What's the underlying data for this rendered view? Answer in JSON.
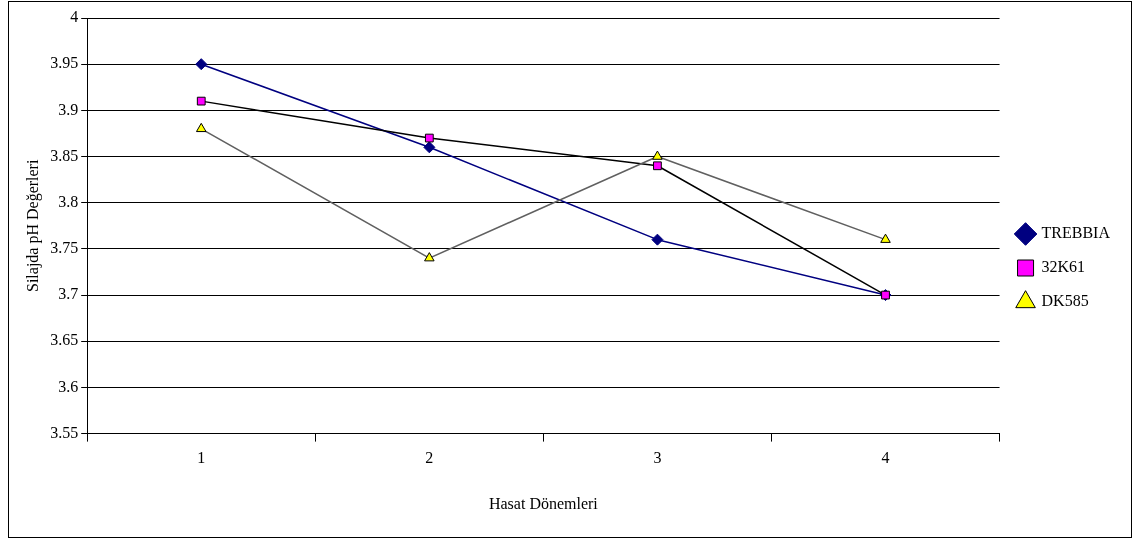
{
  "chart_data": {
    "type": "line",
    "xlabel": "Hasat Dönemleri",
    "ylabel": "Silajda pH Değerleri",
    "categories": [
      "1",
      "2",
      "3",
      "4"
    ],
    "ylim": [
      3.55,
      4
    ],
    "yticks": [
      3.55,
      3.6,
      3.65,
      3.7,
      3.75,
      3.8,
      3.85,
      3.9,
      3.95,
      4
    ],
    "grid": "y",
    "legend": "right",
    "series": [
      {
        "name": "TREBBIA",
        "color": "#000080",
        "marker": "diamond",
        "colors": [
          "#000080",
          "#000080",
          "#000080",
          "#000080"
        ],
        "values": [
          3.95,
          3.86,
          3.76,
          3.7
        ]
      },
      {
        "name": "32K61",
        "color": "#000000",
        "marker": "square",
        "colors": [
          "#ff00ff",
          "#ff00ff",
          "#ff00ff",
          "#ff00ff"
        ],
        "values": [
          3.91,
          3.87,
          3.84,
          3.7
        ]
      },
      {
        "name": "DK585",
        "color": "#606060",
        "marker": "triangle",
        "colors": [
          "#ffff00",
          "#ffff00",
          "#ffff00",
          "#ffff00"
        ],
        "values": [
          3.88,
          3.74,
          3.85,
          3.76
        ]
      }
    ]
  }
}
